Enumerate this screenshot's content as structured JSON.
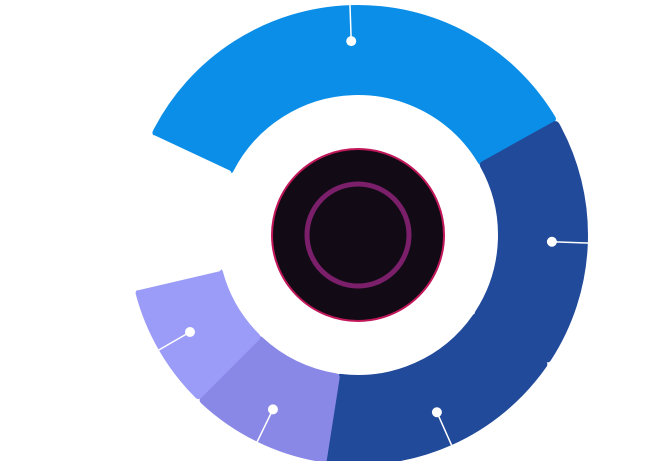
{
  "chart_data": {
    "type": "pie",
    "variant": "donut",
    "title": "",
    "categories": [
      "",
      "",
      "",
      "",
      "",
      ""
    ],
    "values": [
      31,
      16,
      16,
      9,
      8,
      10
    ],
    "colors": [
      "#0b8ee8",
      "#214a9a",
      "#214a9a",
      "#8a88e6",
      "#9b9bf8",
      "#ffffff"
    ],
    "center_colors": {
      "disc": "#120b16",
      "disc_border": "#c2185b",
      "ring": "#7b1f6a"
    },
    "labels_shown": false
  }
}
